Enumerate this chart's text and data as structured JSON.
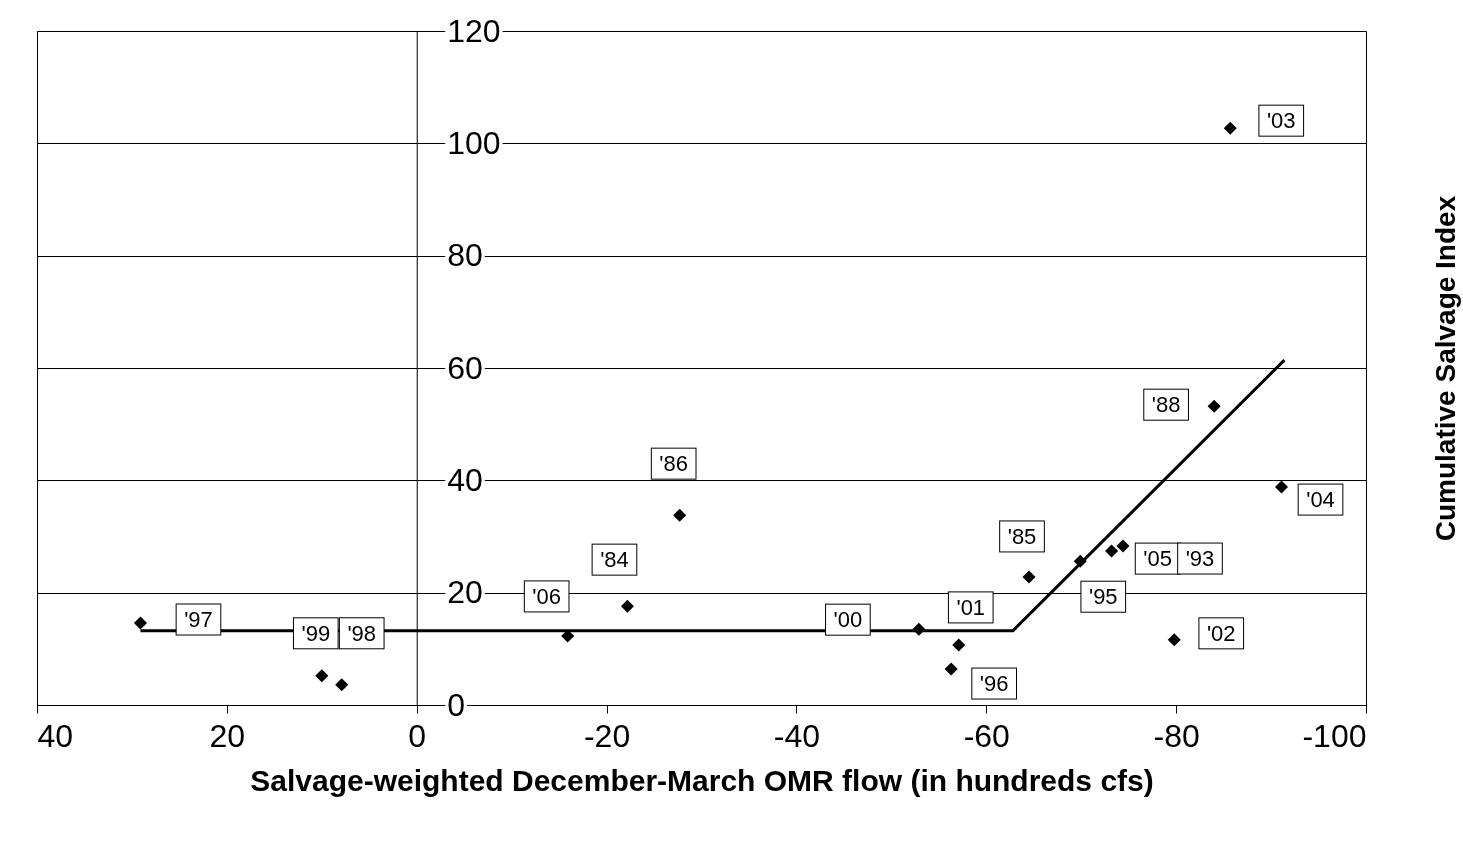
{
  "chart_data": {
    "type": "scatter",
    "xlabel": "Salvage-weighted December-March OMR flow (in hundreds cfs)",
    "ylabel": "Cumulative Salvage Index",
    "xlim": [
      40,
      -100
    ],
    "xticks": [
      40,
      20,
      0,
      -20,
      -40,
      -60,
      -80,
      -100
    ],
    "ylim": [
      0,
      120
    ],
    "yticks": [
      0,
      20,
      40,
      60,
      80,
      100,
      120
    ],
    "grid": "y",
    "series": [
      {
        "marker": "diamond",
        "color": "#000000",
        "x": [
          29.1,
          10.0,
          7.9,
          -15.9,
          -22.2,
          -27.7,
          -52.9,
          -57.1,
          -56.3,
          -64.5,
          -69.9,
          -73.2,
          -74.4,
          -79.8,
          -84.0,
          -85.7,
          -91.1
        ],
        "values": [
          14.6,
          5.2,
          3.6,
          12.3,
          17.6,
          33.8,
          13.5,
          10.7,
          6.4,
          22.8,
          25.6,
          27.4,
          28.3,
          11.6,
          53.2,
          102.7,
          38.8
        ]
      },
      {
        "type": "line",
        "color": "#000000",
        "x": [
          29.1,
          -62.8,
          -91.4
        ],
        "values": [
          13.2,
          13.2,
          61.4
        ]
      }
    ],
    "annotations": [
      {
        "text": "'97",
        "x": 29.1,
        "y": 14.6
      },
      {
        "text": "'99",
        "x": 10.0,
        "y": 5.2
      },
      {
        "text": "'98",
        "x": 7.9,
        "y": 3.6
      },
      {
        "text": "'06",
        "x": -15.9,
        "y": 12.3
      },
      {
        "text": "'84",
        "x": -22.2,
        "y": 17.6
      },
      {
        "text": "'86",
        "x": -27.7,
        "y": 33.8
      },
      {
        "text": "'00",
        "x": -52.9,
        "y": 13.5
      },
      {
        "text": "'01",
        "x": -57.1,
        "y": 10.7
      },
      {
        "text": "'96",
        "x": -56.3,
        "y": 6.4
      },
      {
        "text": "'85",
        "x": -64.5,
        "y": 22.8
      },
      {
        "text": "'95",
        "x": -69.9,
        "y": 25.6
      },
      {
        "text": "'05",
        "x": -73.2,
        "y": 27.4
      },
      {
        "text": "'93",
        "x": -74.4,
        "y": 28.3
      },
      {
        "text": "'02",
        "x": -79.8,
        "y": 11.6
      },
      {
        "text": "'88",
        "x": -84.0,
        "y": 53.2
      },
      {
        "text": "'03",
        "x": -85.7,
        "y": 102.7
      },
      {
        "text": "'04",
        "x": -91.1,
        "y": 38.8
      }
    ]
  }
}
